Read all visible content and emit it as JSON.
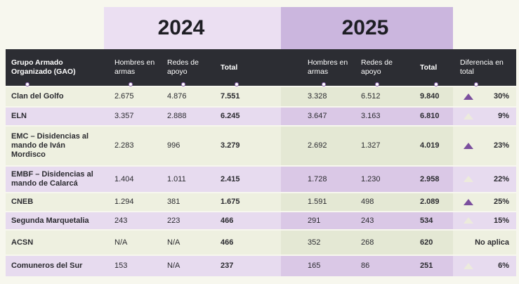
{
  "header": {
    "year_2024": "2024",
    "year_2025": "2025",
    "columns": [
      "Grupo Armado Organizado (GAO)",
      "Hombres en armas",
      "Redes de apoyo",
      "Total",
      "Hombres en armas",
      "Redes de apoyo",
      "Total",
      "Diferencia en total"
    ]
  },
  "table": {
    "rows": [
      {
        "cells": [
          "Clan del Golfo",
          "2.675",
          "4.876",
          "7.551",
          "3.328",
          "6.512",
          "9.840",
          "30%"
        ],
        "arrow_color": "#7b4f9e"
      },
      {
        "cells": [
          "ELN",
          "3.357",
          "2.888",
          "6.245",
          "3.647",
          "3.163",
          "6.810",
          "9%"
        ],
        "arrow_color": "#ecebdc"
      },
      {
        "cells": [
          "EMC – Disidencias al mando de Iván Mordisco",
          "2.283",
          "996",
          "3.279",
          "2.692",
          "1.327",
          "4.019",
          "23%"
        ],
        "arrow_color": "#7b4f9e"
      },
      {
        "cells": [
          "EMBF – Disidencias al mando de Calarcá",
          "1.404",
          "1.011",
          "2.415",
          "1.728",
          "1.230",
          "2.958",
          "22%"
        ],
        "arrow_color": "#ecebdc"
      },
      {
        "cells": [
          "CNEB",
          "1.294",
          "381",
          "1.675",
          "1.591",
          "498",
          "2.089",
          "25%"
        ],
        "arrow_color": "#7b4f9e"
      },
      {
        "cells": [
          "Segunda Marquetalia",
          "243",
          "223",
          "466",
          "291",
          "243",
          "534",
          "15%"
        ],
        "arrow_color": "#ecebdc"
      },
      {
        "cells": [
          "ACSN",
          "N/A",
          "N/A",
          "466",
          "352",
          "268",
          "620",
          "No aplica"
        ],
        "arrow_color": null
      },
      {
        "cells": [
          "Comuneros del Sur",
          "153",
          "N/A",
          "237",
          "165",
          "86",
          "251",
          "6%"
        ],
        "arrow_color": "#ecebdc"
      }
    ]
  }
}
